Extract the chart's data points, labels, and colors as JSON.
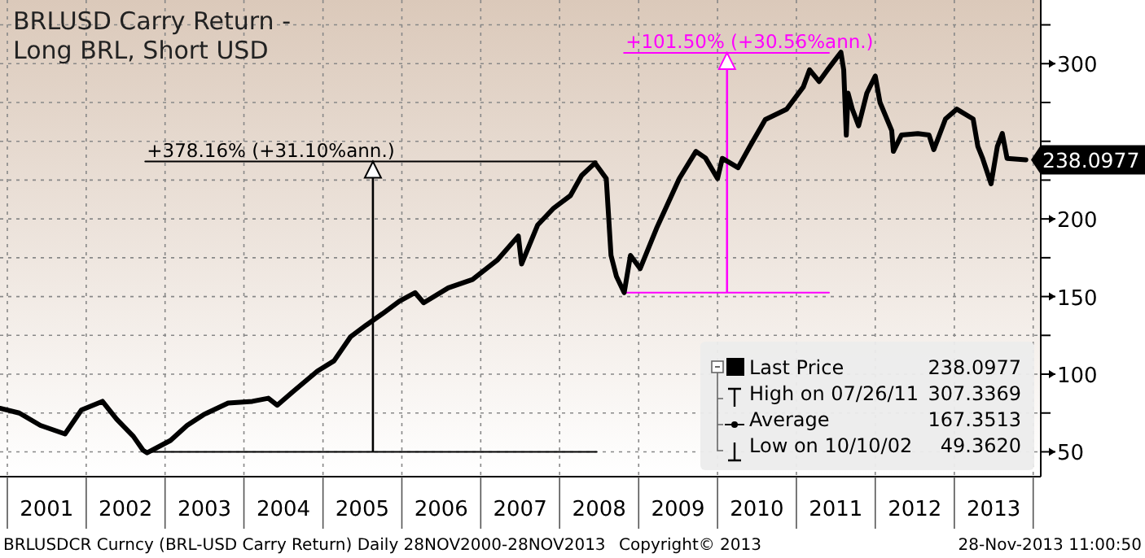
{
  "chart_data": {
    "type": "line",
    "title": "BRLUSD Carry Return -\nLong BRL, Short USD",
    "x": [
      "2000-11-28",
      "2001-02-25",
      "2001-06-03",
      "2001-09-25",
      "2001-12-10",
      "2002-03-17",
      "2002-05-22",
      "2002-08-07",
      "2002-09-21",
      "2002-10-10",
      "2003-01-26",
      "2003-04-13",
      "2003-06-29",
      "2003-10-20",
      "2004-02-09",
      "2004-04-23",
      "2004-06-03",
      "2004-08-15",
      "2004-12-06",
      "2005-02-21",
      "2005-05-08",
      "2005-07-20",
      "2005-10-04",
      "2005-12-20",
      "2006-03-03",
      "2006-04-12",
      "2006-08-04",
      "2006-11-24",
      "2007-03-18",
      "2007-06-24",
      "2007-07-09",
      "2007-09-21",
      "2007-12-05",
      "2008-02-20",
      "2008-04-12",
      "2008-06-13",
      "2008-08-04",
      "2008-08-26",
      "2008-09-20",
      "2008-10-26",
      "2008-11-24",
      "2009-01-08",
      "2009-03-25",
      "2009-07-08",
      "2009-09-23",
      "2009-11-06",
      "2010-01-01",
      "2010-01-23",
      "2010-04-06",
      "2010-05-30",
      "2010-08-10",
      "2010-11-17",
      "2011-02-02",
      "2011-03-03",
      "2011-04-16",
      "2011-05-25",
      "2011-07-26",
      "2011-08-08",
      "2011-08-20",
      "2011-08-28",
      "2011-09-17",
      "2011-10-16",
      "2011-11-23",
      "2012-01-01",
      "2012-01-23",
      "2012-03-17",
      "2012-03-25",
      "2012-05-01",
      "2012-07-16",
      "2012-09-06",
      "2012-09-28",
      "2012-11-21",
      "2013-01-12",
      "2013-03-29",
      "2013-04-20",
      "2013-05-12",
      "2013-06-20",
      "2013-07-19",
      "2013-08-11",
      "2013-09-02",
      "2013-11-28"
    ],
    "series": [
      {
        "name": "Last Price",
        "color": "#000000",
        "values": [
          78,
          75,
          67,
          61.5,
          77,
          82.5,
          71,
          60,
          51,
          49.362,
          57.3,
          67,
          74,
          81.4,
          82.5,
          84.5,
          80,
          88.7,
          102,
          108.6,
          124,
          131.6,
          139,
          147,
          152.5,
          146,
          155.6,
          161,
          173.4,
          189,
          171,
          196,
          207,
          215,
          228,
          236,
          226,
          176.5,
          163,
          152.5,
          176.5,
          168,
          194,
          226,
          243.5,
          239.3,
          226,
          239,
          233,
          246.6,
          264,
          270.7,
          285,
          296,
          288.5,
          296,
          307.3369,
          296,
          254,
          281,
          270.7,
          260,
          281,
          292,
          275,
          257,
          243.5,
          254,
          255,
          254,
          244.6,
          264.4,
          270.7,
          264.4,
          246.6,
          239,
          222.6,
          246.6,
          255,
          239,
          238.0977
        ]
      },
      {
        "type": "line",
        "color": "#000000",
        "x": [
          "2002-10-01",
          "2008-06-20"
        ],
        "values": [
          237,
          237
        ]
      },
      {
        "type": "line",
        "color": "#000000",
        "x": [
          "2002-10-10",
          "2008-06-20"
        ],
        "values": [
          50,
          50
        ]
      },
      {
        "type": "line",
        "color": "#ff00ff",
        "x": [
          "2008-10-25",
          "2011-06-01"
        ],
        "values": [
          307,
          307
        ]
      },
      {
        "type": "line",
        "color": "#ff00ff",
        "x": [
          "2008-10-25",
          "2011-06-01"
        ],
        "values": [
          152.5,
          152.5
        ]
      }
    ],
    "annotations": [
      {
        "text": "+378.16% (+31.10%ann.)",
        "x": "2005-08-20",
        "y": 237
      },
      {
        "text": "+101.50% (+30.56%ann.)",
        "x": "2010-02-14",
        "y": 307
      },
      "238.0977",
      "High on 07/26/11",
      "307.3369",
      "Average",
      "167.3513",
      "Low on 10/10/02",
      "49.3620",
      "BRLUSDCR Curncy (BRL-USD Carry Return)  Daily 28NOV2000-28NOV2013",
      "Copyright© 2013",
      "28-Nov-2013 11:00:50"
    ],
    "xlim": [
      "2000-11-28",
      "2014-02-05"
    ],
    "xticks": [
      {
        "value": "2001-01-01",
        "label": null
      },
      {
        "value": "2001-07-02",
        "label": "2001"
      },
      {
        "value": "2002-01-01",
        "label": null
      },
      {
        "value": "2002-07-02",
        "label": "2002"
      },
      {
        "value": "2003-01-01",
        "label": null
      },
      {
        "value": "2003-07-02",
        "label": "2003"
      },
      {
        "value": "2004-01-01",
        "label": null
      },
      {
        "value": "2004-07-02",
        "label": "2004"
      },
      {
        "value": "2005-01-01",
        "label": null
      },
      {
        "value": "2005-07-02",
        "label": "2005"
      },
      {
        "value": "2006-01-01",
        "label": null
      },
      {
        "value": "2006-07-02",
        "label": "2006"
      },
      {
        "value": "2007-01-01",
        "label": null
      },
      {
        "value": "2007-07-02",
        "label": "2007"
      },
      {
        "value": "2008-01-01",
        "label": null
      },
      {
        "value": "2008-07-02",
        "label": "2008"
      },
      {
        "value": "2009-01-01",
        "label": null
      },
      {
        "value": "2009-07-02",
        "label": "2009"
      },
      {
        "value": "2010-01-01",
        "label": null
      },
      {
        "value": "2010-07-02",
        "label": "2010"
      },
      {
        "value": "2011-01-01",
        "label": null
      },
      {
        "value": "2011-07-02",
        "label": "2011"
      },
      {
        "value": "2012-01-01",
        "label": null
      },
      {
        "value": "2012-07-02",
        "label": "2012"
      },
      {
        "value": "2013-01-01",
        "label": null
      },
      {
        "value": "2013-07-02",
        "label": "2013"
      },
      {
        "value": "2014-01-01",
        "label": null
      }
    ],
    "ylim": [
      34,
      341
    ],
    "yticks": [
      50,
      {
        "value": 75,
        "label": null
      },
      100,
      {
        "value": 125,
        "label": null
      },
      150,
      {
        "value": 175,
        "label": null
      },
      200,
      {
        "value": 225,
        "label": null
      },
      {
        "value": 250,
        "label": null
      },
      {
        "value": 275,
        "label": null
      },
      300,
      {
        "value": 325,
        "label": null
      }
    ],
    "grid": true,
    "legend": "bottom right",
    "line_style": "solid"
  }
}
